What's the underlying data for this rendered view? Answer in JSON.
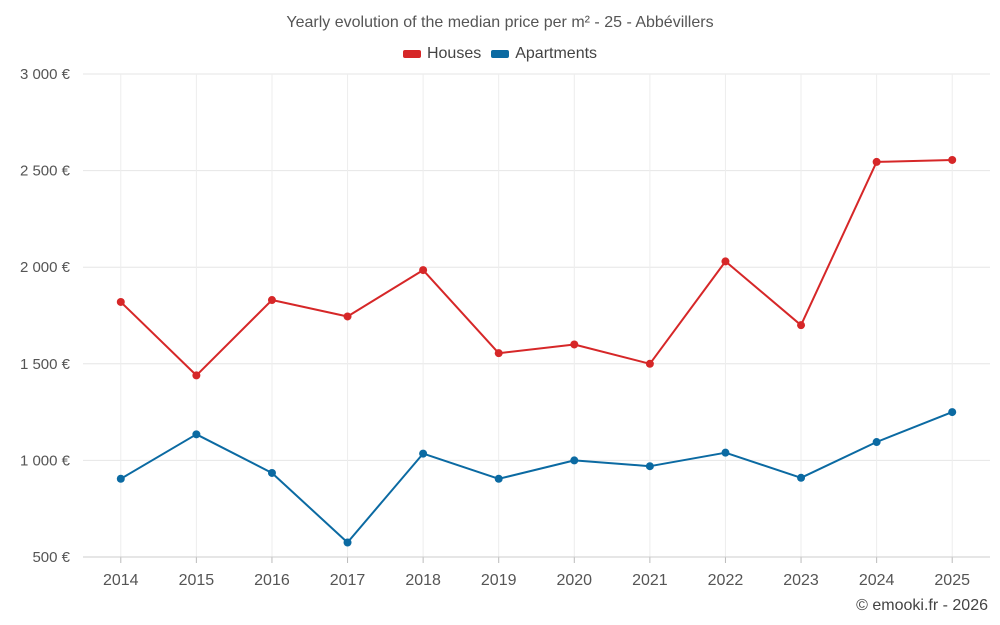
{
  "chart_data": {
    "type": "line",
    "title": "Yearly evolution of the median price per m² - 25 - Abbévillers",
    "x": [
      "2014",
      "2015",
      "2016",
      "2017",
      "2018",
      "2019",
      "2020",
      "2021",
      "2022",
      "2023",
      "2024",
      "2025"
    ],
    "series": [
      {
        "name": "Houses",
        "color": "#d62728",
        "values": [
          1820,
          1440,
          1830,
          1745,
          1985,
          1555,
          1600,
          1500,
          2030,
          1700,
          2545,
          2555
        ]
      },
      {
        "name": "Apartments",
        "color": "#0b6aa2",
        "values": [
          905,
          1135,
          935,
          575,
          1035,
          905,
          1000,
          970,
          1040,
          910,
          1095,
          1250
        ]
      }
    ],
    "yticks": [
      500,
      1000,
      1500,
      2000,
      2500,
      3000
    ],
    "ytick_labels": [
      "500 €",
      "1 000 €",
      "1 500 €",
      "2 000 €",
      "2 500 €",
      "3 000 €"
    ],
    "ylim": [
      500,
      3000
    ],
    "xlabel": "",
    "ylabel": "",
    "grid": true,
    "legend_position": "top-center"
  },
  "credit": "© emooki.fr - 2026"
}
